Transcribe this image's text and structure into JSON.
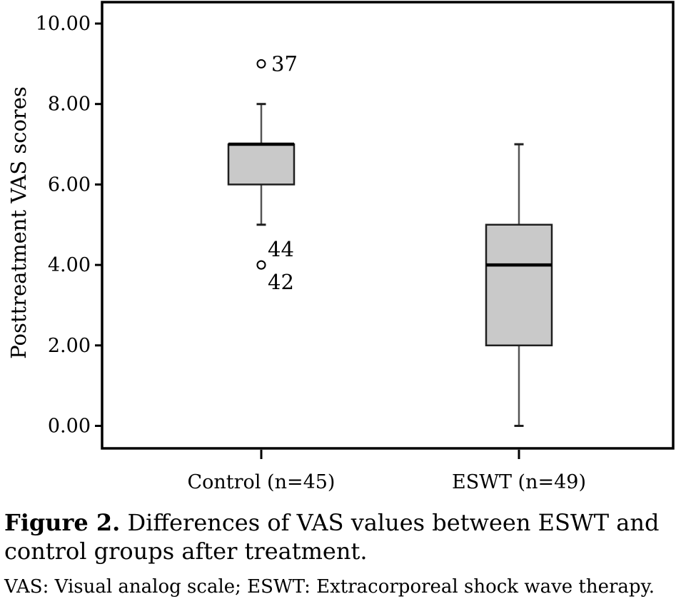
{
  "figure": {
    "caption_label": "Figure 2.",
    "caption_text": " Differences of VAS values between ESWT and control groups after treatment.",
    "footnote": "VAS: Visual analog scale; ESWT: Extracorporeal shock wave therapy."
  },
  "chart_data": {
    "type": "box",
    "title": "",
    "xlabel": "",
    "ylabel": "Posttreatment VAS scores",
    "ylim": [
      0,
      10.5
    ],
    "yticks": [
      0,
      2,
      4,
      6,
      8,
      10
    ],
    "ytick_labels": [
      "0.00",
      "2.00",
      "4.00",
      "6.00",
      "8.00",
      "10.00"
    ],
    "grid": false,
    "legend": null,
    "categories": [
      "Control (n=45)",
      "ESWT (n=49)"
    ],
    "series": [
      {
        "category": "Control (n=45)",
        "q1": 6,
        "median": 7,
        "q3": 7,
        "whisker_low": 5,
        "whisker_high": 8,
        "outliers": [
          {
            "value": 9,
            "label": "37",
            "label_position": "right"
          },
          {
            "value": 4,
            "label": "44",
            "label_position": "above-right"
          },
          {
            "value": 4,
            "label": "42",
            "label_position": "below-right"
          }
        ]
      },
      {
        "category": "ESWT (n=49)",
        "q1": 2,
        "median": 4,
        "q3": 5,
        "whisker_low": 0,
        "whisker_high": 7,
        "outliers": []
      }
    ],
    "colors": {
      "box_fill": "#c9c9c9",
      "box_border": "#1f1f1f",
      "median_line": "#000000",
      "whisker": "#555555",
      "frame": "#000000",
      "text": "#000000",
      "outlier_stroke": "#000000",
      "background": "#ffffff"
    }
  }
}
